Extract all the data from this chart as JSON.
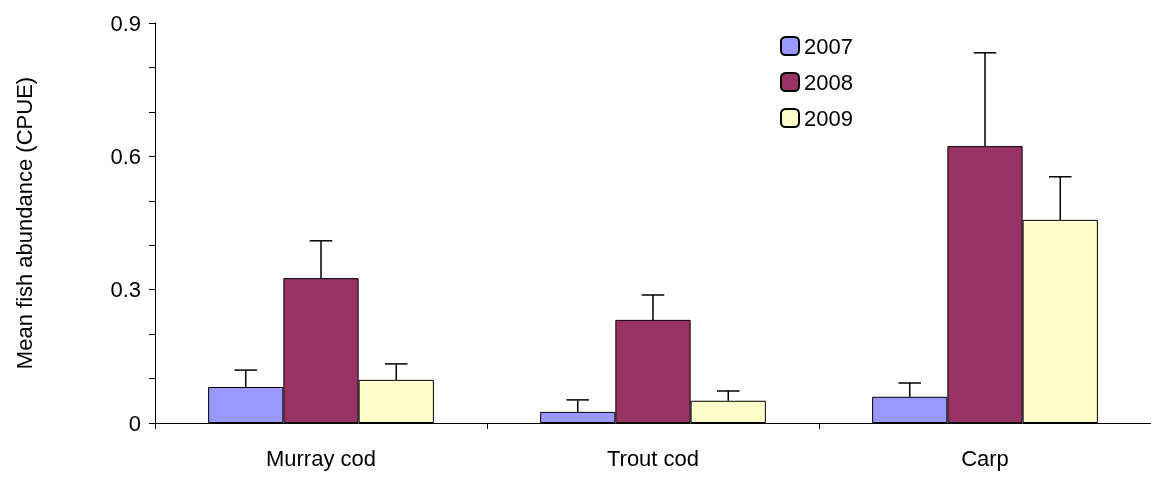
{
  "chart_data": {
    "type": "bar",
    "ylabel": "Mean fish abundance (CPUE)",
    "categories": [
      "Murray cod",
      "Trout cod",
      "Carp"
    ],
    "series": [
      {
        "name": "2007",
        "color": "#9999ff",
        "values": [
          0.081,
          0.025,
          0.059
        ],
        "errors": [
          [
            0.081,
            0.119
          ],
          [
            0.025,
            0.052
          ],
          [
            0.059,
            0.09
          ]
        ]
      },
      {
        "name": "2008",
        "color": "#993366",
        "values": [
          0.326,
          0.232,
          0.623
        ],
        "errors": [
          [
            0.326,
            0.41
          ],
          [
            0.232,
            0.288
          ],
          [
            0.623,
            0.833
          ]
        ]
      },
      {
        "name": "2009",
        "color": "#ffffcc",
        "values": [
          0.097,
          0.05,
          0.457
        ],
        "errors": [
          [
            0.097,
            0.133
          ],
          [
            0.05,
            0.072
          ],
          [
            0.457,
            0.554
          ]
        ]
      }
    ],
    "ylim": [
      0,
      0.9
    ],
    "yticks": [
      0,
      {
        "value": 0.1,
        "label": null
      },
      {
        "value": 0.2,
        "label": null
      },
      0.3,
      {
        "value": 0.4,
        "label": null
      },
      {
        "value": 0.5,
        "label": null
      },
      0.6,
      {
        "value": 0.7,
        "label": null
      },
      {
        "value": 0.8,
        "label": null
      },
      0.9
    ],
    "grid": false,
    "legend": "top right"
  }
}
